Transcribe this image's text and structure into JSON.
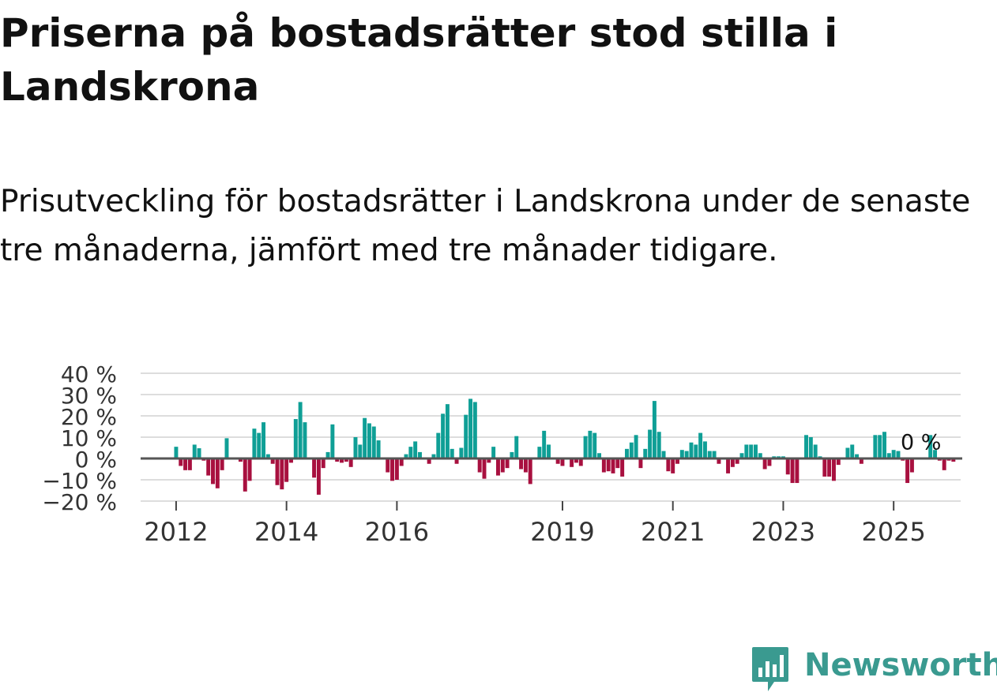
{
  "title": "Priserna på bostadsrätter stod stilla i Landskrona",
  "subtitle": "Prisutveckling för bostadsrätter i Landskrona under de senaste tre månaderna, jämfört med tre månader tidigare.",
  "brand": {
    "name": "Newsworthy",
    "color": "#3a9a90",
    "icon": "newsworthy-logo-icon"
  },
  "colors": {
    "positive": "#0f9f96",
    "negative": "#a8103f",
    "zero_line": "#555555",
    "grid": "#dddddd",
    "text": "#111111"
  },
  "chart_data": {
    "type": "bar",
    "title": "",
    "xlabel": "",
    "ylabel": "",
    "x_start": 2011.5,
    "x_end": 2026.3,
    "ylim": [
      -20,
      40
    ],
    "y_ticks": [
      40,
      30,
      20,
      10,
      0,
      -10,
      -20
    ],
    "y_tick_labels": [
      "40 %",
      "30 %",
      "20 %",
      "10 %",
      "0 %",
      "−10 %",
      "−20 %"
    ],
    "x_ticks": [
      2012,
      2014,
      2016,
      2019,
      2021,
      2023,
      2025
    ],
    "x_tick_labels": [
      "2012",
      "2014",
      "2016",
      "2019",
      "2021",
      "2023",
      "2025"
    ],
    "last_value_label": "0 %",
    "bar_width_months": 0.85,
    "series": [
      {
        "name": "Prisutveckling",
        "start": 2012.0,
        "step": 0.08333,
        "values": [
          5.5,
          -3.5,
          -5.5,
          -5.5,
          6.5,
          4.8,
          -1,
          -8,
          -12,
          -14,
          -5.5,
          9.5,
          0,
          0,
          -1.5,
          -15.5,
          -10.5,
          14,
          12,
          17,
          2,
          -2.5,
          -12.5,
          -14.5,
          -11,
          -2,
          18.5,
          26.5,
          17,
          0,
          -9,
          -17,
          -4.5,
          3,
          16,
          -1.5,
          -2,
          -1.5,
          -4,
          10,
          6.5,
          19,
          16.5,
          15,
          8.5,
          0,
          -6.5,
          -10.5,
          -10,
          -3.5,
          2,
          5.5,
          8,
          3,
          0.5,
          -2.5,
          2,
          12,
          21,
          25.5,
          4.5,
          -2.5,
          5,
          20.5,
          28,
          26.5,
          -6.5,
          -9.5,
          -2,
          5.5,
          -8,
          -6.5,
          -4.5,
          3,
          10.5,
          -5,
          -6.5,
          -12,
          0.5,
          5.5,
          13,
          6.5,
          0,
          -2.5,
          -3.5,
          0,
          -4,
          -2,
          -3.5,
          10.5,
          13,
          12,
          2.5,
          -6.5,
          -6,
          -7,
          -4.5,
          -8.5,
          4.5,
          7.5,
          11,
          -4.5,
          4.5,
          13.5,
          27,
          12.5,
          3.5,
          -6,
          -7,
          -2.5,
          4,
          3.5,
          7.5,
          6.5,
          12,
          8,
          3.5,
          3.5,
          -2.5,
          0,
          -7,
          -4,
          -2.5,
          2.5,
          6.5,
          6.5,
          6.5,
          2.5,
          -5,
          -3.5,
          1,
          1,
          1,
          -7.5,
          -11.5,
          -11.5,
          0.5,
          11,
          10,
          6.5,
          1,
          -8.5,
          -8.5,
          -10.5,
          -3,
          0,
          5,
          6.5,
          2,
          -2.5,
          0,
          0,
          11,
          11,
          12.5,
          2.5,
          4,
          3.5,
          -1,
          -11.5,
          -6.5,
          0,
          0,
          0,
          11,
          4,
          -1,
          -5.5,
          -1,
          -1.5,
          0
        ]
      }
    ]
  }
}
